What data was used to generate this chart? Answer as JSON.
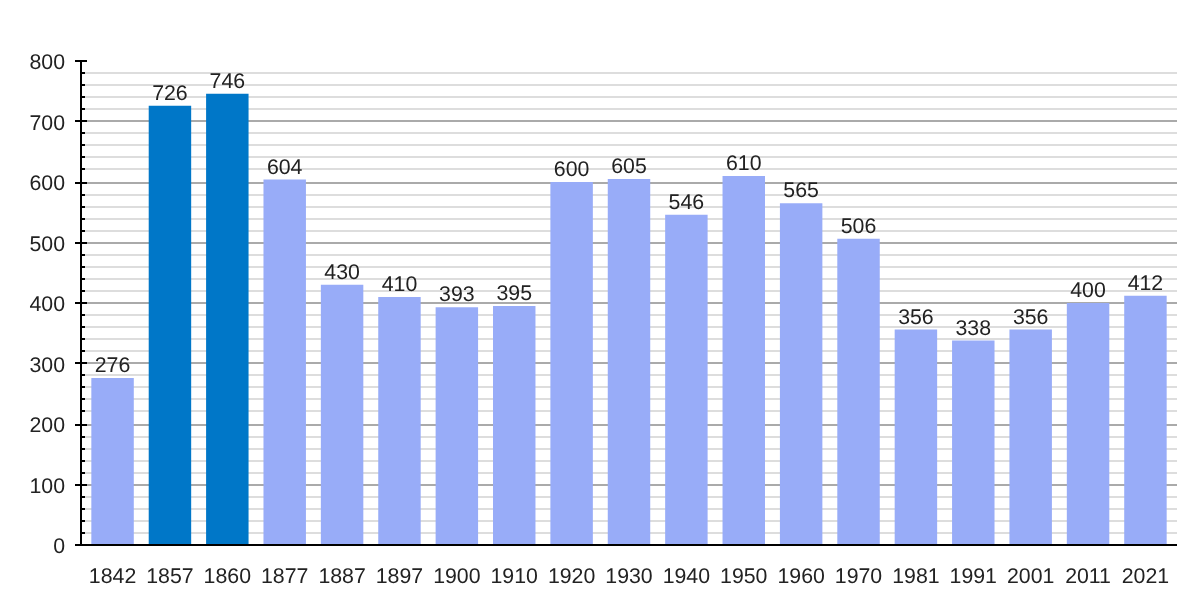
{
  "chart_data": {
    "type": "bar",
    "categories": [
      "1842",
      "1857",
      "1860",
      "1877",
      "1887",
      "1897",
      "1900",
      "1910",
      "1920",
      "1930",
      "1940",
      "1950",
      "1960",
      "1970",
      "1981",
      "1991",
      "2001",
      "2011",
      "2021"
    ],
    "values": [
      276,
      726,
      746,
      604,
      430,
      410,
      393,
      395,
      600,
      605,
      546,
      610,
      565,
      506,
      356,
      338,
      356,
      400,
      412
    ],
    "colors": [
      "#98acf8",
      "#0077c8",
      "#0077c8",
      "#98acf8",
      "#98acf8",
      "#98acf8",
      "#98acf8",
      "#98acf8",
      "#98acf8",
      "#98acf8",
      "#98acf8",
      "#98acf8",
      "#98acf8",
      "#98acf8",
      "#98acf8",
      "#98acf8",
      "#98acf8",
      "#98acf8",
      "#98acf8"
    ],
    "ylim": [
      0,
      800
    ],
    "yticks": [
      0,
      100,
      200,
      300,
      400,
      500,
      600,
      700,
      800
    ],
    "grid": "y",
    "data_labels": true
  }
}
